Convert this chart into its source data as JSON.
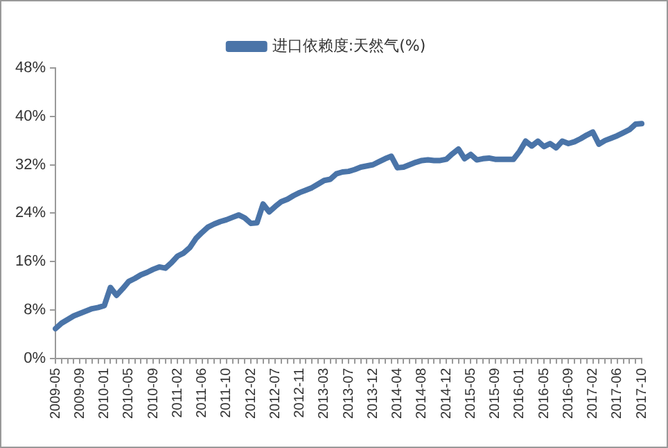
{
  "chart_data": {
    "type": "line",
    "categories": [
      "2009-05",
      null,
      null,
      null,
      "2009-09",
      null,
      null,
      null,
      "2010-01",
      null,
      null,
      null,
      "2010-05",
      null,
      null,
      null,
      "2010-09",
      null,
      null,
      null,
      "2011-02",
      null,
      null,
      null,
      "2011-06",
      null,
      null,
      null,
      "2011-10",
      null,
      null,
      null,
      "2012-02",
      null,
      null,
      null,
      "2012-07",
      null,
      null,
      null,
      "2012-11",
      null,
      null,
      null,
      "2013-03",
      null,
      null,
      null,
      "2013-07",
      null,
      null,
      null,
      "2013-12",
      null,
      null,
      null,
      "2014-04",
      null,
      null,
      null,
      "2014-08",
      null,
      null,
      null,
      "2014-12",
      null,
      null,
      null,
      "2015-05",
      null,
      null,
      null,
      "2015-09",
      null,
      null,
      null,
      "2016-01",
      null,
      null,
      null,
      "2016-05",
      null,
      null,
      null,
      "2016-09",
      null,
      null,
      null,
      "2017-02",
      null,
      null,
      null,
      "2017-06",
      null,
      null,
      null,
      "2017-10"
    ],
    "series": [
      {
        "name": "进口依赖度:天然气(%)",
        "color": "#4a74a8",
        "values": [
          4.9,
          5.8,
          6.4,
          7.0,
          7.4,
          7.8,
          8.2,
          8.4,
          8.7,
          11.7,
          10.4,
          11.5,
          12.7,
          13.2,
          13.8,
          14.2,
          14.7,
          15.1,
          14.9,
          15.8,
          16.9,
          17.4,
          18.3,
          19.8,
          20.8,
          21.7,
          22.2,
          22.6,
          22.9,
          23.3,
          23.7,
          23.2,
          22.3,
          22.4,
          25.5,
          24.2,
          25.1,
          25.9,
          26.3,
          26.9,
          27.4,
          27.8,
          28.2,
          28.8,
          29.4,
          29.6,
          30.5,
          30.8,
          30.9,
          31.2,
          31.6,
          31.8,
          32.0,
          32.5,
          33.0,
          33.4,
          31.5,
          31.6,
          32.0,
          32.4,
          32.7,
          32.8,
          32.7,
          32.7,
          32.9,
          33.8,
          34.6,
          33.0,
          33.7,
          32.8,
          33.0,
          33.1,
          32.9,
          32.9,
          32.9,
          32.9,
          34.2,
          35.9,
          35.1,
          35.9,
          35.0,
          35.5,
          34.8,
          35.9,
          35.5,
          35.8,
          36.3,
          36.9,
          37.4,
          35.4,
          36.0,
          36.4,
          36.8,
          37.3,
          37.8,
          38.7,
          38.8
        ]
      }
    ],
    "ylim": [
      0,
      48
    ],
    "yticks": [
      {
        "value": 0,
        "label": "0%"
      },
      {
        "value": 8,
        "label": "8%"
      },
      {
        "value": 16,
        "label": "16%"
      },
      {
        "value": 24,
        "label": "24%"
      },
      {
        "value": 32,
        "label": "32%"
      },
      {
        "value": 40,
        "label": "40%"
      },
      {
        "value": 48,
        "label": "48%"
      }
    ],
    "grid": false,
    "legend": "top",
    "marker": "none",
    "line_style": "solid"
  }
}
